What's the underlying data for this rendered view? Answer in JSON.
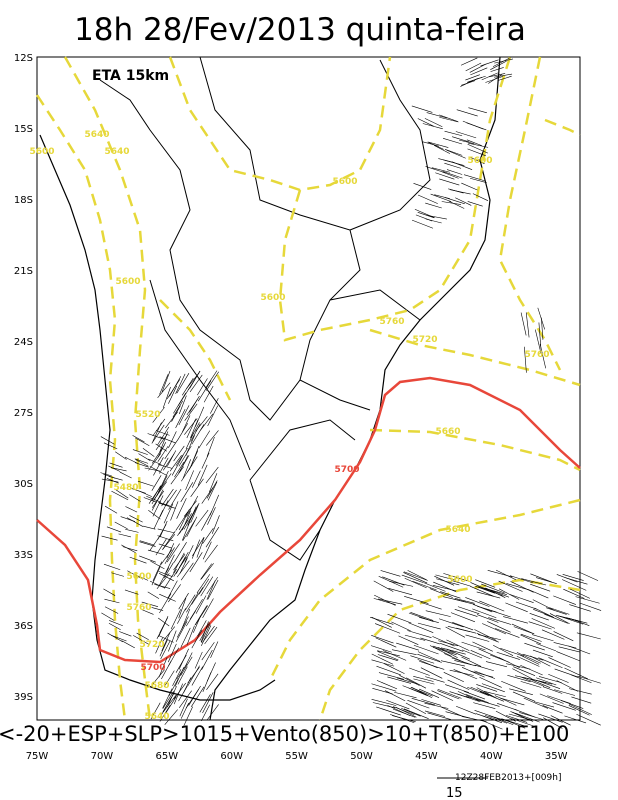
{
  "title": "18h 28/Fev/2013 quinta-feira",
  "model_label": "ETA 15km",
  "lat_labels": [
    "12S",
    "15S",
    "18S",
    "21S",
    "24S",
    "27S",
    "30S",
    "33S",
    "36S",
    "39S"
  ],
  "lon_labels": [
    "75W",
    "70W",
    "65W",
    "60W",
    "55W",
    "50W",
    "45W",
    "40W",
    "35W"
  ],
  "contour_labels": [
    "5640",
    "5600",
    "5640",
    "5600",
    "5600",
    "5600",
    "5600",
    "5760",
    "5720",
    "5760",
    "5520",
    "5660",
    "5700",
    "5480",
    "5640",
    "5600",
    "5600",
    "5760",
    "5720",
    "5700",
    "5680",
    "5640"
  ],
  "caption": "<-20+ESP+SLP>1015+Vento(850)>10+T(850)+E100",
  "timestamp": "12Z28FEB2013+[009h]",
  "scale_label": "15"
}
